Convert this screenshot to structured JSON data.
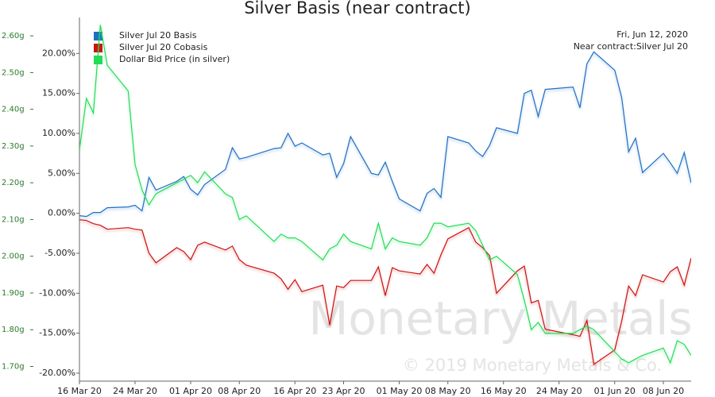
{
  "chart_data": {
    "type": "line",
    "title": "Silver Basis (near contract)",
    "annotations": [
      "Fri, Jun 12, 2020",
      "Near contract:Silver Jul 20"
    ],
    "watermark": [
      "Monetary Metals",
      "© 2019 Monetary Metals & Co."
    ],
    "x": [
      "2020-03-16",
      "2020-03-17",
      "2020-03-18",
      "2020-03-19",
      "2020-03-20",
      "2020-03-23",
      "2020-03-24",
      "2020-03-25",
      "2020-03-26",
      "2020-03-27",
      "2020-03-30",
      "2020-03-31",
      "2020-04-01",
      "2020-04-02",
      "2020-04-03",
      "2020-04-06",
      "2020-04-07",
      "2020-04-08",
      "2020-04-09",
      "2020-04-13",
      "2020-04-14",
      "2020-04-15",
      "2020-04-16",
      "2020-04-17",
      "2020-04-20",
      "2020-04-21",
      "2020-04-22",
      "2020-04-23",
      "2020-04-24",
      "2020-04-27",
      "2020-04-28",
      "2020-04-29",
      "2020-04-30",
      "2020-05-01",
      "2020-05-04",
      "2020-05-05",
      "2020-05-06",
      "2020-05-07",
      "2020-05-08",
      "2020-05-11",
      "2020-05-12",
      "2020-05-13",
      "2020-05-14",
      "2020-05-15",
      "2020-05-18",
      "2020-05-19",
      "2020-05-20",
      "2020-05-21",
      "2020-05-22",
      "2020-05-26",
      "2020-05-27",
      "2020-05-28",
      "2020-05-29",
      "2020-06-01",
      "2020-06-02",
      "2020-06-03",
      "2020-06-04",
      "2020-06-05",
      "2020-06-08",
      "2020-06-09",
      "2020-06-10",
      "2020-06-11",
      "2020-06-12"
    ],
    "xlim": [
      "2020-03-16",
      "2020-06-12"
    ],
    "xticks": [
      {
        "value": "2020-03-16",
        "label": "16 Mar 20"
      },
      {
        "value": "2020-03-24",
        "label": "24 Mar 20"
      },
      {
        "value": "2020-04-01",
        "label": "01 Apr 20"
      },
      {
        "value": "2020-04-08",
        "label": "08 Apr 20"
      },
      {
        "value": "2020-04-16",
        "label": "16 Apr 20"
      },
      {
        "value": "2020-04-23",
        "label": "23 Apr 20"
      },
      {
        "value": "2020-05-01",
        "label": "01 May 20"
      },
      {
        "value": "2020-05-08",
        "label": "08 May 20"
      },
      {
        "value": "2020-05-16",
        "label": "16 May 20"
      },
      {
        "value": "2020-05-24",
        "label": "24 May 20"
      },
      {
        "value": "2020-06-01",
        "label": "01 Jun 20"
      },
      {
        "value": "2020-06-08",
        "label": "08 Jun 20"
      }
    ],
    "ylim": [
      -21,
      24.5
    ],
    "yticks": [
      {
        "value": 20,
        "label": "20.00%"
      },
      {
        "value": 15,
        "label": "15.00%"
      },
      {
        "value": 10,
        "label": "10.00%"
      },
      {
        "value": 5,
        "label": "5.00%"
      },
      {
        "value": 0,
        "label": "0.00%"
      },
      {
        "value": -5,
        "label": "-5.00%"
      },
      {
        "value": -10,
        "label": "-10.00%"
      },
      {
        "value": -15,
        "label": "-15.00%"
      },
      {
        "value": -20,
        "label": "-20.00%"
      }
    ],
    "y2lim": [
      1.66,
      2.65
    ],
    "y2ticks": [
      {
        "value": 2.6,
        "label": "2.60g"
      },
      {
        "value": 2.5,
        "label": "2.50g"
      },
      {
        "value": 2.4,
        "label": "2.40g"
      },
      {
        "value": 2.3,
        "label": "2.30g"
      },
      {
        "value": 2.2,
        "label": "2.20g"
      },
      {
        "value": 2.1,
        "label": "2.10g"
      },
      {
        "value": 2.0,
        "label": "2.00g"
      },
      {
        "value": 1.9,
        "label": "1.90g"
      },
      {
        "value": 1.8,
        "label": "1.80g"
      },
      {
        "value": 1.7,
        "label": "1.70g"
      }
    ],
    "legend": "top-left",
    "series": [
      {
        "name": "Silver Jul 20 Basis",
        "color": "#1f6fc4",
        "values": [
          -0.3,
          -0.4,
          0.1,
          0.1,
          0.7,
          0.8,
          1.0,
          0.3,
          4.5,
          2.9,
          4.0,
          4.6,
          3.0,
          2.3,
          3.6,
          5.5,
          8.2,
          6.8,
          7.0,
          8.1,
          8.2,
          10.0,
          8.4,
          8.8,
          7.3,
          7.5,
          4.5,
          6.2,
          9.6,
          5.0,
          4.8,
          6.4,
          4.0,
          1.8,
          0.3,
          2.5,
          3.1,
          2.0,
          9.6,
          8.8,
          7.8,
          7.1,
          8.5,
          10.7,
          10.0,
          15.0,
          15.4,
          12.1,
          15.5,
          15.8,
          13.2,
          18.7,
          20.2,
          17.9,
          14.5,
          7.7,
          9.4,
          5.1,
          7.5,
          6.3,
          5.0,
          7.6,
          3.8
        ]
      },
      {
        "name": "Silver Jul 20 Cobasis",
        "color": "#cc1111",
        "values": [
          -0.8,
          -0.9,
          -1.3,
          -1.5,
          -2.0,
          -1.8,
          -2.0,
          -2.1,
          -5.0,
          -6.2,
          -4.3,
          -4.8,
          -5.8,
          -4.0,
          -3.6,
          -4.6,
          -4.1,
          -5.8,
          -6.5,
          -7.5,
          -8.2,
          -9.5,
          -8.3,
          -9.8,
          -9.0,
          -14.0,
          -9.1,
          -9.3,
          -8.4,
          -8.4,
          -6.7,
          -10.3,
          -6.8,
          -7.2,
          -7.6,
          -6.4,
          -7.5,
          -5.2,
          -3.2,
          -1.8,
          -3.6,
          -4.3,
          -5.3,
          -10.0,
          -7.2,
          -6.6,
          -11.2,
          -10.9,
          -14.5,
          -15.2,
          -15.4,
          -13.4,
          -18.9,
          -17.1,
          -13.5,
          -9.1,
          -10.3,
          -7.7,
          -8.6,
          -7.3,
          -6.7,
          -9.0,
          -5.6
        ]
      },
      {
        "name": "Dollar Bid Price (in silver)",
        "color": "#22dd55",
        "axis": "y2",
        "values": [
          2.29,
          2.43,
          2.39,
          2.63,
          2.52,
          2.45,
          2.25,
          2.18,
          2.14,
          2.17,
          2.2,
          2.21,
          2.22,
          2.2,
          2.23,
          2.17,
          2.16,
          2.1,
          2.11,
          2.04,
          2.06,
          2.05,
          2.05,
          2.04,
          1.99,
          2.02,
          2.03,
          2.06,
          2.04,
          2.02,
          2.09,
          2.02,
          2.05,
          2.04,
          2.03,
          2.05,
          2.09,
          2.09,
          2.08,
          2.09,
          2.07,
          2.03,
          1.99,
          2.0,
          1.95,
          1.88,
          1.8,
          1.82,
          1.79,
          1.79,
          1.8,
          1.81,
          1.8,
          1.74,
          1.72,
          1.71,
          1.72,
          1.73,
          1.75,
          1.71,
          1.77,
          1.76,
          1.73
        ]
      }
    ]
  }
}
